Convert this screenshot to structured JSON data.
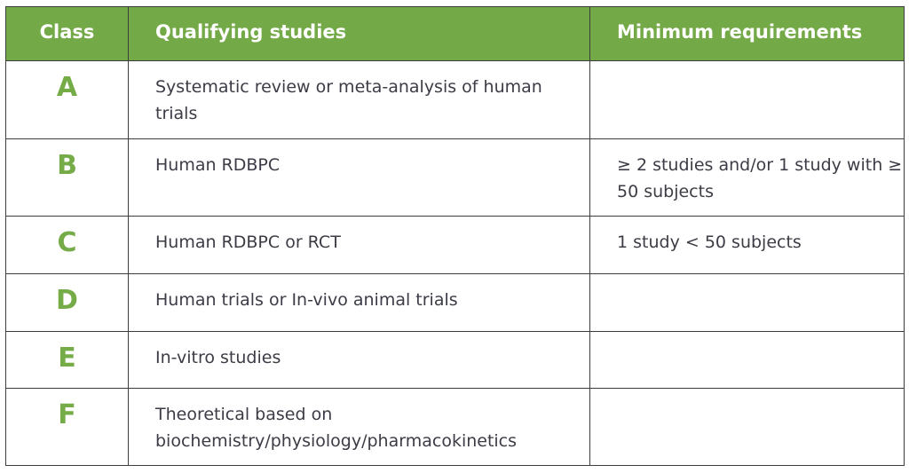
{
  "table": {
    "headers": {
      "class": "Class",
      "studies": "Qualifying studies",
      "requirements": "Minimum requirements"
    },
    "rows": [
      {
        "class": "A",
        "studies": "Systematic review or meta-analysis of human trials",
        "requirements": ""
      },
      {
        "class": "B",
        "studies": "Human RDBPC",
        "requirements": "≥ 2 studies and/or 1 study with ≥ 50 subjects"
      },
      {
        "class": "C",
        "studies": "Human RDBPC or RCT",
        "requirements": "1 study < 50 subjects"
      },
      {
        "class": "D",
        "studies": "Human trials or In-vivo animal trials",
        "requirements": ""
      },
      {
        "class": "E",
        "studies": "In-vitro studies",
        "requirements": ""
      },
      {
        "class": "F",
        "studies": "Theoretical based on biochemistry/physiology/pharmacokinetics",
        "requirements": ""
      }
    ]
  },
  "colors": {
    "header_bg": "#73a946",
    "class_letter": "#76ac48",
    "border": "#3d3d3d",
    "body_text": "#3c3c46"
  }
}
